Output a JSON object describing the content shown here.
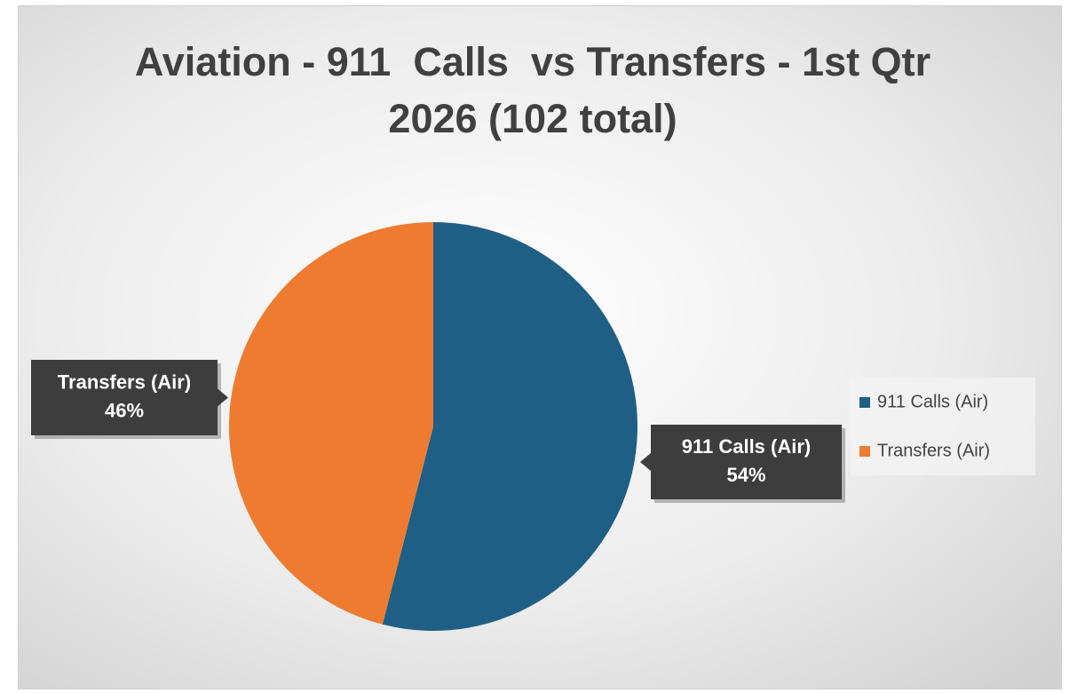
{
  "chart_data": {
    "type": "pie",
    "title": "Aviation - 911  Calls  vs Transfers - 1st Qtr 2026 (102 total)",
    "categories": [
      "911 Calls (Air)",
      "Transfers (Air)"
    ],
    "values": [
      54,
      46
    ],
    "value_labels": [
      "54%",
      "46%"
    ],
    "colors": [
      "#1f5f85",
      "#ee7b30"
    ]
  }
}
